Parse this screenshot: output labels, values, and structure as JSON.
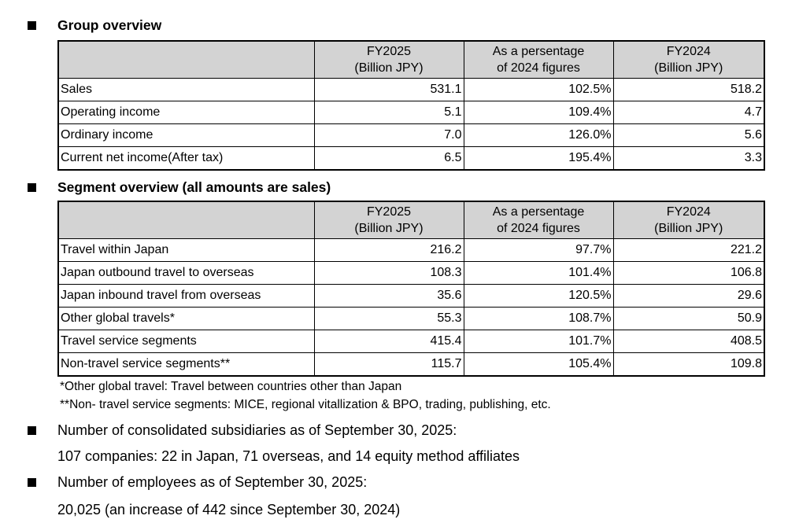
{
  "sections": [
    {
      "title": "Group overview",
      "table": {
        "header": [
          [
            "FY2025",
            "(Billion JPY)"
          ],
          [
            "As a persentage",
            "of 2024 figures"
          ],
          [
            "FY2024",
            "(Billion JPY)"
          ]
        ],
        "rows": [
          [
            "Sales",
            "531.1",
            "102.5%",
            "518.2"
          ],
          [
            "Operating income",
            "5.1",
            "109.4%",
            "4.7"
          ],
          [
            "Ordinary income",
            "7.0",
            "126.0%",
            "5.6"
          ],
          [
            "Current net income(After tax)",
            "6.5",
            "195.4%",
            "3.3"
          ]
        ]
      }
    },
    {
      "title": "Segment overview (all amounts are sales)",
      "table": {
        "header": [
          [
            "FY2025",
            "(Billion JPY)"
          ],
          [
            "As a persentage",
            "of 2024 figures"
          ],
          [
            "FY2024",
            "(Billion JPY)"
          ]
        ],
        "rows": [
          [
            "Travel within Japan",
            "216.2",
            "97.7%",
            "221.2"
          ],
          [
            "Japan outbound travel to overseas",
            "108.3",
            "101.4%",
            "106.8"
          ],
          [
            "Japan inbound travel from overseas",
            "35.6",
            "120.5%",
            "29.6"
          ],
          [
            "Other global travels*",
            "55.3",
            "108.7%",
            "50.9"
          ],
          [
            "Travel service segments",
            "415.4",
            "101.7%",
            "408.5"
          ],
          [
            "Non-travel service segments**",
            "115.7",
            "105.4%",
            "109.8"
          ]
        ]
      }
    }
  ],
  "footnotes": [
    "*Other global travel: Travel between countries other than Japan",
    "**Non- travel service segments: MICE, regional vitallization & BPO, trading, publishing, etc."
  ],
  "bullets": [
    {
      "text": "Number of consolidated subsidiaries as of September 30, 2025:",
      "detail": "107 companies: 22 in Japan, 71 overseas, and 14 equity method affiliates"
    },
    {
      "text": "Number of employees as of September 30, 2025:",
      "detail": "20,025 (an increase of 442 since September 30, 2024)"
    }
  ]
}
